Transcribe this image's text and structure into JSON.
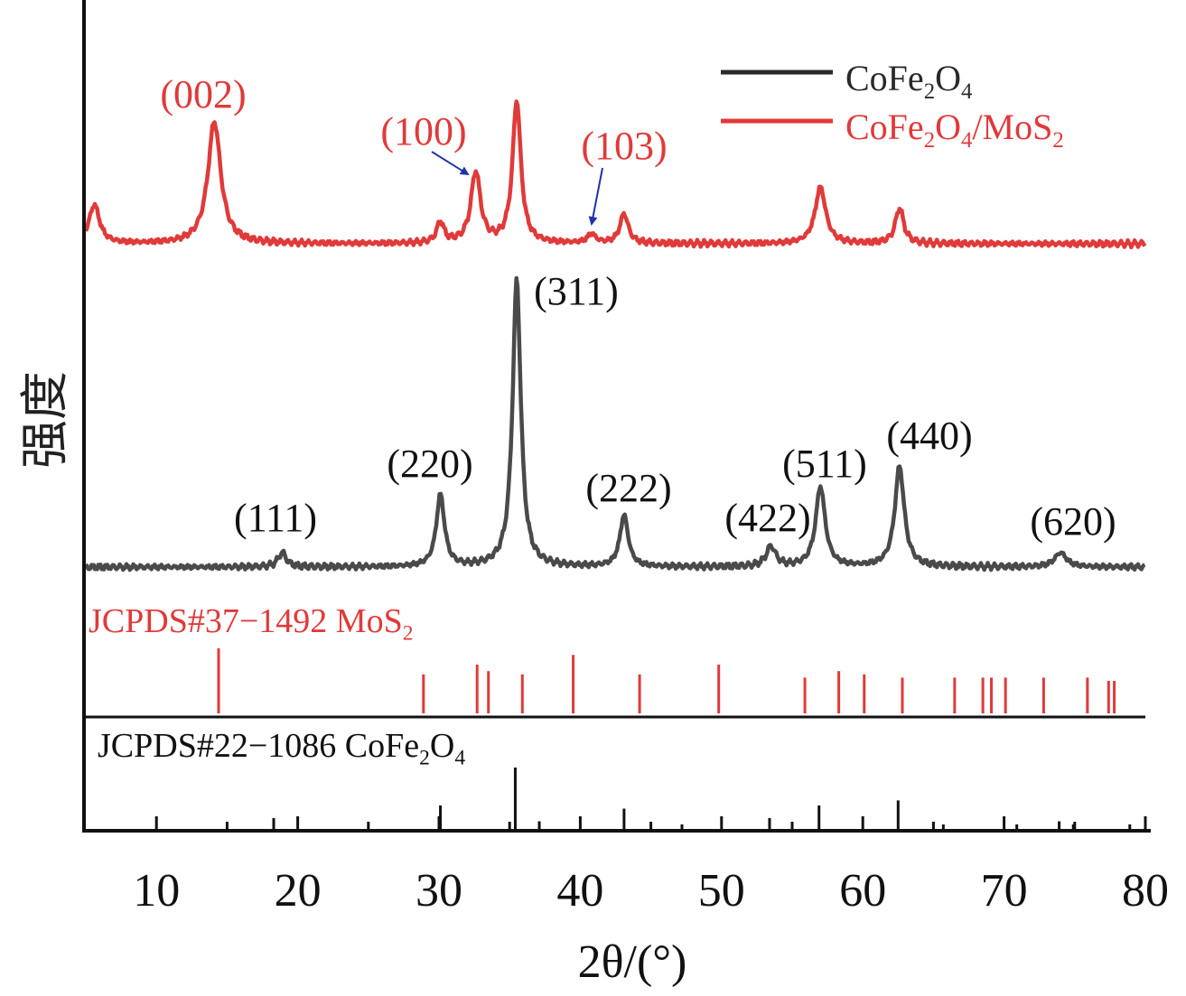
{
  "chart_data": {
    "type": "line",
    "xlabel": "2θ/(°)",
    "ylabel": "强度",
    "xlim": [
      5,
      80
    ],
    "x_ticks": [
      10,
      20,
      30,
      40,
      50,
      60,
      70,
      80
    ],
    "legend": {
      "placement": "top-right",
      "entries": [
        {
          "name": "CoFe2O4",
          "color": "#2a2a2a"
        },
        {
          "name": "CoFe2O4/MoS2",
          "color": "#e03a3a"
        }
      ]
    },
    "series": [
      {
        "name": "CoFe2O4",
        "color": "#4a4a4a",
        "baseline": 0.0,
        "peaks": [
          {
            "x": 18.9,
            "height": 0.05,
            "width": 0.35
          },
          {
            "x": 30.1,
            "height": 0.25,
            "width": 0.35
          },
          {
            "x": 35.5,
            "height": 1.0,
            "width": 0.35
          },
          {
            "x": 43.1,
            "height": 0.18,
            "width": 0.35
          },
          {
            "x": 53.5,
            "height": 0.07,
            "width": 0.4
          },
          {
            "x": 57.0,
            "height": 0.28,
            "width": 0.4
          },
          {
            "x": 62.6,
            "height": 0.35,
            "width": 0.4
          },
          {
            "x": 74.0,
            "height": 0.05,
            "width": 0.5
          }
        ],
        "peak_labels": [
          {
            "text": "(111)",
            "x": 18.9
          },
          {
            "text": "(220)",
            "x": 30.1
          },
          {
            "text": "(311)",
            "x": 35.5
          },
          {
            "text": "(222)",
            "x": 43.1
          },
          {
            "text": "(422)",
            "x": 53.5
          },
          {
            "text": "(511)",
            "x": 57.0
          },
          {
            "text": "(440)",
            "x": 62.6
          },
          {
            "text": "(620)",
            "x": 74.0
          }
        ]
      },
      {
        "name": "CoFe2O4/MoS2",
        "color": "#e03a3a",
        "baseline": 0.0,
        "peaks": [
          {
            "x": 5.6,
            "height": 0.13,
            "width": 0.45
          },
          {
            "x": 14.1,
            "height": 0.41,
            "width": 0.55
          },
          {
            "x": 30.1,
            "height": 0.07,
            "width": 0.3
          },
          {
            "x": 32.6,
            "height": 0.24,
            "width": 0.4
          },
          {
            "x": 35.5,
            "height": 0.48,
            "width": 0.35
          },
          {
            "x": 40.8,
            "height": 0.03,
            "width": 0.35
          },
          {
            "x": 43.1,
            "height": 0.1,
            "width": 0.35
          },
          {
            "x": 57.0,
            "height": 0.19,
            "width": 0.45
          },
          {
            "x": 62.6,
            "height": 0.12,
            "width": 0.35
          }
        ],
        "peak_labels": [
          {
            "text": "(002)",
            "x": 14.1
          },
          {
            "text": "(100)",
            "x": 32.6
          },
          {
            "text": "(103)",
            "x": 40.8
          }
        ]
      }
    ],
    "reference_patterns": [
      {
        "label": "JCPDS#37−1492 MoS2",
        "color": "#e03a3a",
        "peaks": [
          {
            "x": 14.4,
            "intensity": 1.0
          },
          {
            "x": 28.9,
            "intensity": 0.6
          },
          {
            "x": 32.7,
            "intensity": 0.75
          },
          {
            "x": 33.5,
            "intensity": 0.65
          },
          {
            "x": 35.9,
            "intensity": 0.6
          },
          {
            "x": 39.5,
            "intensity": 0.9
          },
          {
            "x": 44.2,
            "intensity": 0.6
          },
          {
            "x": 49.8,
            "intensity": 0.75
          },
          {
            "x": 55.9,
            "intensity": 0.55
          },
          {
            "x": 58.3,
            "intensity": 0.65
          },
          {
            "x": 60.1,
            "intensity": 0.6
          },
          {
            "x": 62.8,
            "intensity": 0.55
          },
          {
            "x": 66.5,
            "intensity": 0.55
          },
          {
            "x": 68.5,
            "intensity": 0.55
          },
          {
            "x": 69.1,
            "intensity": 0.55
          },
          {
            "x": 70.1,
            "intensity": 0.55
          },
          {
            "x": 72.8,
            "intensity": 0.55
          },
          {
            "x": 75.9,
            "intensity": 0.55
          },
          {
            "x": 77.4,
            "intensity": 0.5
          },
          {
            "x": 77.8,
            "intensity": 0.5
          }
        ]
      },
      {
        "label": "JCPDS#22−1086 CoFe2O4",
        "color": "#111111",
        "peaks": [
          {
            "x": 18.3,
            "intensity": 0.2
          },
          {
            "x": 30.1,
            "intensity": 0.4
          },
          {
            "x": 35.4,
            "intensity": 1.0
          },
          {
            "x": 37.1,
            "intensity": 0.15
          },
          {
            "x": 43.1,
            "intensity": 0.35
          },
          {
            "x": 47.2,
            "intensity": 0.1
          },
          {
            "x": 53.4,
            "intensity": 0.2
          },
          {
            "x": 56.9,
            "intensity": 0.4
          },
          {
            "x": 62.5,
            "intensity": 0.48
          },
          {
            "x": 65.7,
            "intensity": 0.1
          },
          {
            "x": 70.9,
            "intensity": 0.1
          },
          {
            "x": 73.9,
            "intensity": 0.15
          },
          {
            "x": 74.9,
            "intensity": 0.1
          },
          {
            "x": 78.9,
            "intensity": 0.1
          }
        ]
      }
    ]
  }
}
